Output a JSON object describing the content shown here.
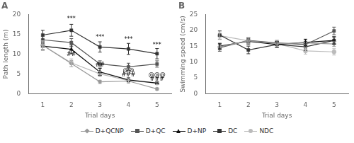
{
  "chart_data": [
    {
      "type": "line",
      "title": "A",
      "xlabel": "Trial days",
      "ylabel": "Path length (m)",
      "x": [
        1,
        2,
        3,
        4,
        5
      ],
      "xlim": [
        0.5,
        5.5
      ],
      "xticks": [
        1,
        2,
        3,
        4,
        5
      ],
      "ylim": [
        0,
        20
      ],
      "yticks": [
        0,
        5,
        10,
        15,
        20
      ],
      "grid": false,
      "legend": "bottom",
      "series": [
        {
          "name": "D+QCNP",
          "color": "#999999",
          "marker": "diamond",
          "line_style": "solid",
          "values": [
            12.2,
            7.6,
            3.0,
            3.2,
            1.2
          ],
          "errors": [
            1.0,
            0.8,
            0.4,
            0.5,
            0.3
          ]
        },
        {
          "name": "D+QC",
          "color": "#555555",
          "marker": "square",
          "line_style": "solid",
          "values": [
            13.6,
            12.9,
            7.5,
            6.8,
            7.5
          ],
          "errors": [
            0.9,
            1.0,
            0.8,
            0.9,
            0.8
          ]
        },
        {
          "name": "D+NP",
          "color": "#111111",
          "marker": "triangle",
          "line_style": "solid",
          "values": [
            12.0,
            11.2,
            5.5,
            3.5,
            2.7
          ],
          "errors": [
            1.0,
            1.1,
            0.9,
            0.5,
            0.4
          ]
        },
        {
          "name": "DC",
          "color": "#333333",
          "marker": "square",
          "line_style": "solid",
          "values": [
            14.8,
            16.0,
            11.8,
            11.3,
            10.1
          ],
          "errors": [
            1.2,
            1.5,
            1.3,
            1.4,
            1.3
          ]
        },
        {
          "name": "NDC",
          "color": "#bbbbbb",
          "marker": "circle",
          "line_style": "solid",
          "values": [
            12.2,
            7.8,
            5.0,
            3.3,
            2.7
          ],
          "errors": [
            1.2,
            1.0,
            0.7,
            0.5,
            0.4
          ]
        }
      ],
      "annotations": [
        {
          "x": 2,
          "y": 18.2,
          "text": "***"
        },
        {
          "x": 2,
          "y": 9.2,
          "text": "##"
        },
        {
          "x": 3,
          "y": 13.5,
          "text": "***"
        },
        {
          "x": 3,
          "y": 6.5,
          "text": "##"
        },
        {
          "x": 4,
          "y": 13.0,
          "text": "***"
        },
        {
          "x": 4,
          "y": 5.0,
          "text": "@@"
        },
        {
          "x": 4,
          "y": 4.0,
          "text": "###"
        },
        {
          "x": 5,
          "y": 11.5,
          "text": "***"
        },
        {
          "x": 5,
          "y": 4.0,
          "text": "@@@"
        },
        {
          "x": 5,
          "y": 3.0,
          "text": "###"
        }
      ]
    },
    {
      "type": "line",
      "title": "B",
      "xlabel": "Trial days",
      "ylabel": "Swimming speed (cm/s)",
      "x": [
        1,
        2,
        3,
        4,
        5
      ],
      "xlim": [
        0.5,
        5.5
      ],
      "xticks": [
        1,
        2,
        3,
        4,
        5
      ],
      "ylim": [
        0,
        25
      ],
      "yticks": [
        0,
        5,
        10,
        15,
        20,
        25
      ],
      "grid": false,
      "legend": "bottom",
      "series": [
        {
          "name": "D+QCNP",
          "color": "#999999",
          "marker": "diamond",
          "line_style": "solid",
          "values": [
            14.8,
            16.7,
            15.8,
            16.0,
            15.7
          ],
          "errors": [
            1.0,
            0.8,
            0.7,
            0.9,
            0.8
          ]
        },
        {
          "name": "D+QC",
          "color": "#555555",
          "marker": "square",
          "line_style": "solid",
          "values": [
            14.5,
            16.8,
            16.0,
            15.5,
            19.8
          ],
          "errors": [
            1.1,
            0.9,
            0.8,
            1.0,
            1.2
          ]
        },
        {
          "name": "D+NP",
          "color": "#111111",
          "marker": "triangle",
          "line_style": "solid",
          "values": [
            15.0,
            16.5,
            15.5,
            16.2,
            16.8
          ],
          "errors": [
            0.9,
            1.0,
            0.9,
            1.0,
            1.1
          ]
        },
        {
          "name": "DC",
          "color": "#333333",
          "marker": "square",
          "line_style": "solid",
          "values": [
            18.5,
            13.8,
            15.5,
            14.8,
            16.8
          ],
          "errors": [
            1.3,
            1.2,
            1.0,
            1.1,
            1.2
          ]
        },
        {
          "name": "NDC",
          "color": "#bbbbbb",
          "marker": "circle",
          "line_style": "solid",
          "values": [
            18.3,
            16.7,
            15.8,
            13.5,
            13.2
          ],
          "errors": [
            1.2,
            1.0,
            1.1,
            1.0,
            1.0
          ]
        }
      ]
    }
  ]
}
